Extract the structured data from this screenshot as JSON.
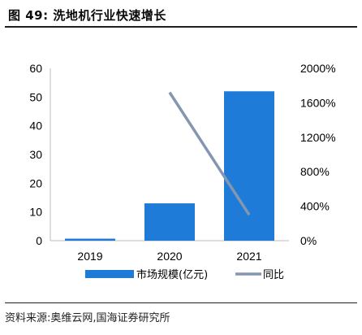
{
  "figure": {
    "title": "图 49: 洗地机行业快速增长",
    "source": "资料来源:奥维云网,国海证券研究所"
  },
  "chart_data": {
    "type": "bar",
    "categories": [
      "2019",
      "2020",
      "2021"
    ],
    "series": [
      {
        "name": "市场规模(亿元)",
        "type": "bar",
        "axis": "left",
        "values": [
          0.7,
          13,
          52
        ],
        "color": "#1f7bd8"
      },
      {
        "name": "同比",
        "type": "line",
        "axis": "right",
        "values": [
          null,
          1720,
          300
        ],
        "color": "#8496b0"
      }
    ],
    "y_left": {
      "ylim": [
        0,
        60
      ],
      "ticks": [
        "0",
        "10",
        "20",
        "30",
        "40",
        "50",
        "60"
      ]
    },
    "y_right": {
      "ylim": [
        0,
        2000
      ],
      "ticks": [
        "0%",
        "400%",
        "800%",
        "1200%",
        "1600%",
        "2000%"
      ]
    },
    "legend": {
      "placement": "bottom",
      "labels": [
        "市场规模(亿元)",
        "同比"
      ]
    },
    "grid": false
  }
}
